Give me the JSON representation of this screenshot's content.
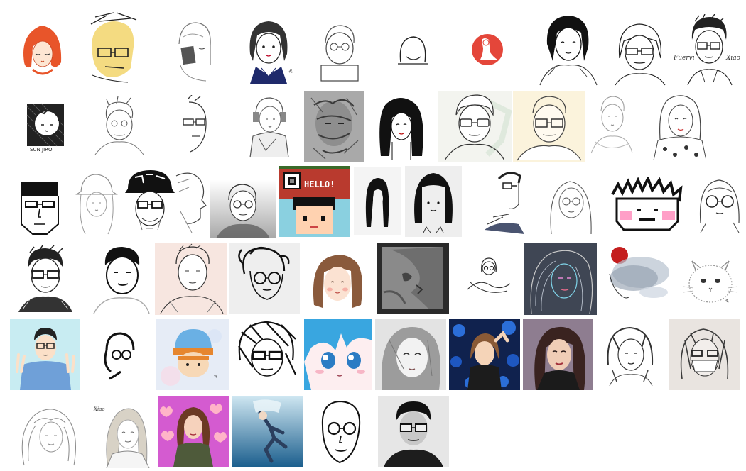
{
  "gallery": {
    "captions": {
      "sun_jiro": "SUN JIRO",
      "fuervi": "Fuervi",
      "xiao": "Xiao",
      "hello": "HELLO!",
      "xiao_small": "Xiao"
    },
    "portraits": [
      {
        "row": 1,
        "style": "red-hair-girl-eyes-closed",
        "palette": "#e8552a"
      },
      {
        "row": 1,
        "style": "yellow-sketch-man-glasses",
        "palette": "#f2d56b"
      },
      {
        "row": 1,
        "style": "pencil-girl-holding-book"
      },
      {
        "row": 1,
        "style": "ink-woman-navy-collar",
        "palette": "#1f2a6b"
      },
      {
        "row": 1,
        "style": "line-man-glasses-sign"
      },
      {
        "row": 1,
        "style": "minimal-line-face"
      },
      {
        "row": 1,
        "style": "red-circle-figure",
        "palette": "#e4463a"
      },
      {
        "row": 1,
        "style": "ink-short-hair-woman"
      },
      {
        "row": 1,
        "style": "bob-hair-glasses-man"
      },
      {
        "row": 1,
        "style": "ink-man-glasses-signed"
      },
      {
        "row": 2,
        "style": "framed-curly-hair-woodcut"
      },
      {
        "row": 2,
        "style": "line-man-messy-hair"
      },
      {
        "row": 2,
        "style": "half-face-glasses"
      },
      {
        "row": 2,
        "style": "girl-headphones-sketch"
      },
      {
        "row": 2,
        "style": "charcoal-abstract-face",
        "palette": "#6d6d6d"
      },
      {
        "row": 2,
        "style": "long-black-hair-girl"
      },
      {
        "row": 2,
        "style": "man-glasses-soft-colour"
      },
      {
        "row": 2,
        "style": "man-glasses-cream-bg",
        "palette": "#fbf3dc"
      },
      {
        "row": 2,
        "style": "light-line-man"
      },
      {
        "row": 2,
        "style": "girl-polka-dot-top"
      },
      {
        "row": 3,
        "style": "geometric-man-glasses"
      },
      {
        "row": 3,
        "style": "girl-bucket-hat"
      },
      {
        "row": 3,
        "style": "man-black-cap-glasses"
      },
      {
        "row": 3,
        "style": "profile-sketch"
      },
      {
        "row": 3,
        "style": "man-glasses-gradient",
        "palette": "#cfcfcf"
      },
      {
        "row": 3,
        "style": "pixel-hello",
        "palette": "#b93a2e"
      },
      {
        "row": 3,
        "style": "ink-long-hair-small"
      },
      {
        "row": 3,
        "style": "black-bob-girl",
        "palette": "#eeeeee"
      },
      {
        "row": 3,
        "style": "side-profile-glasses"
      },
      {
        "row": 3,
        "style": "line-girl-glasses"
      },
      {
        "row": 3,
        "style": "pixel-spiky-hair-pink-cheeks",
        "palette": "#ff9fc7"
      },
      {
        "row": 3,
        "style": "line-girl-round-glasses"
      },
      {
        "row": 4,
        "style": "ink-man-glasses-crosshatch"
      },
      {
        "row": 4,
        "style": "bold-line-man"
      },
      {
        "row": 4,
        "style": "man-peach-bg",
        "palette": "#f7e6e0"
      },
      {
        "row": 4,
        "style": "ink-man-round-glasses-grey"
      },
      {
        "row": 4,
        "style": "brown-hair-girl",
        "palette": "#8a5a3c"
      },
      {
        "row": 4,
        "style": "dark-abstract-profile",
        "palette": "#2a2a2a"
      },
      {
        "row": 4,
        "style": "tiny-line-girl-crossed-arms"
      },
      {
        "row": 4,
        "style": "neon-line-girl-dark",
        "palette": "#3a4250"
      },
      {
        "row": 4,
        "style": "watercolour-red-dot",
        "palette": "#c41e1e"
      },
      {
        "row": 4,
        "style": "fluffy-cat-signed"
      },
      {
        "row": 5,
        "style": "boy-peace-sign-blue",
        "palette": "#6fb4e8"
      },
      {
        "row": 5,
        "style": "minimal-bold-profile"
      },
      {
        "row": 5,
        "style": "orange-beanie-kid",
        "palette": "#e6862e"
      },
      {
        "row": 5,
        "style": "scribble-man-glasses"
      },
      {
        "row": 5,
        "style": "anime-blue-hair",
        "palette": "#39a6e0"
      },
      {
        "row": 5,
        "style": "grey-pencil-girl"
      },
      {
        "row": 5,
        "style": "girl-blue-roses",
        "palette": "#1d3f8a"
      },
      {
        "row": 5,
        "style": "dark-hair-woman-purple",
        "palette": "#5b4a5e"
      },
      {
        "row": 5,
        "style": "ink-woman-grey"
      },
      {
        "row": 5,
        "style": "masked-ink-woman",
        "palette": "#e9e4e0"
      },
      {
        "row": 6,
        "style": "wavy-hair-girl-line"
      },
      {
        "row": 6,
        "style": "blonde-woman-signed"
      },
      {
        "row": 6,
        "style": "girl-hearts-pink",
        "palette": "#d957cf"
      },
      {
        "row": 6,
        "style": "underwater-figure",
        "palette": "#5fa3c7"
      },
      {
        "row": 6,
        "style": "bold-line-man-glasses"
      },
      {
        "row": 6,
        "style": "grey-man-glasses",
        "palette": "#8a8a8a"
      }
    ]
  }
}
